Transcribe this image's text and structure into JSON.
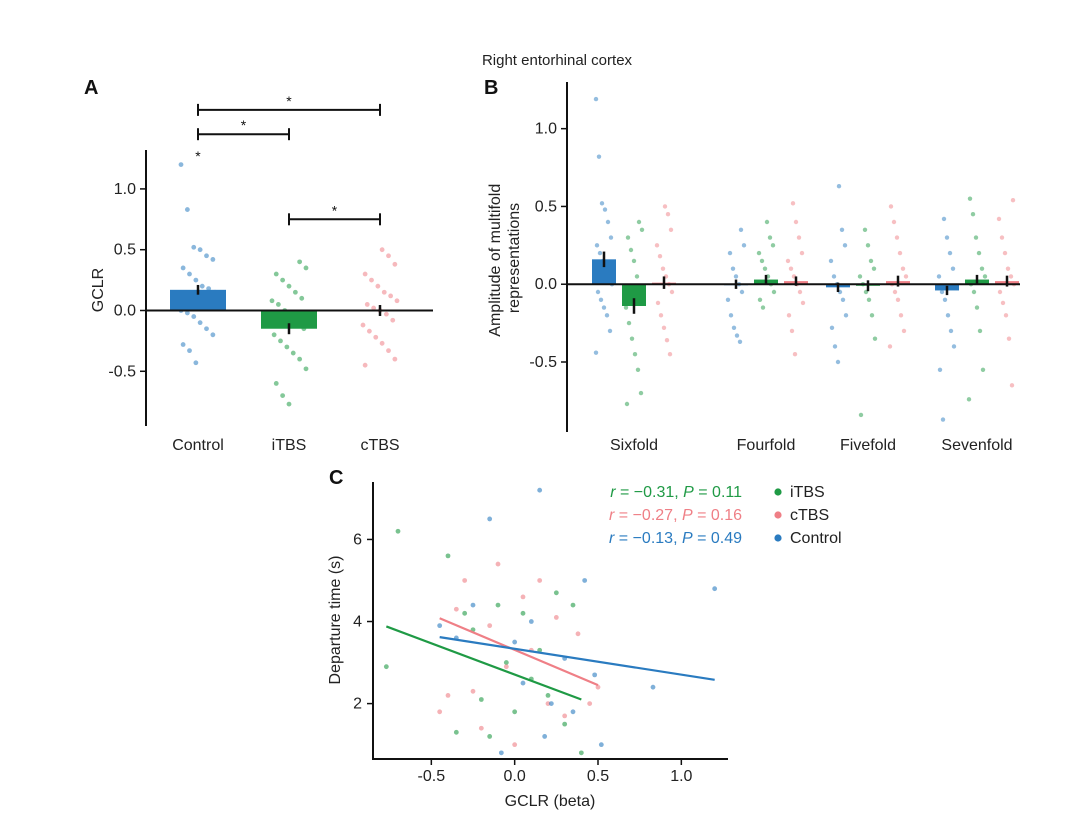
{
  "figure": {
    "title": "Right entorhinal cortex"
  },
  "colors": {
    "Control": "#2a7bc0",
    "iTBS": "#1f9a45",
    "cTBS": "#ef7f86"
  },
  "chart_data": [
    {
      "panel": "A",
      "type": "bar",
      "ylabel": "GCLR",
      "xlabel": "",
      "ylim": [
        -0.95,
        1.32
      ],
      "yticks": [
        -0.5,
        0.0,
        0.5,
        1.0
      ],
      "ytick_labels": [
        "-0.5",
        "0.0",
        "0.5",
        "1.0"
      ],
      "categories": [
        "Control",
        "iTBS",
        "cTBS"
      ],
      "values": [
        0.17,
        -0.15,
        0.0
      ],
      "errors": [
        0.04,
        0.045,
        0.045
      ],
      "points": {
        "Control": [
          1.2,
          0.83,
          0.52,
          0.5,
          0.45,
          0.42,
          0.35,
          0.3,
          0.25,
          0.2,
          0.18,
          0.15,
          0.12,
          0.1,
          0.08,
          0.05,
          0.03,
          0.0,
          -0.02,
          -0.05,
          -0.1,
          -0.15,
          -0.2,
          -0.28,
          -0.33,
          -0.43
        ],
        "iTBS": [
          0.4,
          0.35,
          0.3,
          0.25,
          0.2,
          0.15,
          0.1,
          0.08,
          0.05,
          0.0,
          -0.05,
          -0.1,
          -0.15,
          -0.2,
          -0.25,
          -0.3,
          -0.35,
          -0.4,
          -0.48,
          -0.6,
          -0.7,
          -0.77
        ],
        "cTBS": [
          0.5,
          0.45,
          0.38,
          0.3,
          0.25,
          0.2,
          0.15,
          0.12,
          0.08,
          0.05,
          0.02,
          0.0,
          -0.03,
          -0.08,
          -0.12,
          -0.17,
          -0.22,
          -0.27,
          -0.33,
          -0.4,
          -0.45
        ]
      },
      "point_labels": [
        {
          "category": "Control",
          "value": 1.27,
          "text": "*"
        }
      ],
      "significance_brackets": [
        {
          "from": "Control",
          "to": "cTBS",
          "value": 1.65,
          "label": "*"
        },
        {
          "from": "Control",
          "to": "iTBS",
          "value": 1.45,
          "label": "*"
        },
        {
          "from": "iTBS",
          "to": "cTBS",
          "value": 0.75,
          "label": "*"
        }
      ]
    },
    {
      "panel": "B",
      "type": "bar",
      "ylabel": "Amplitude of multifold representations",
      "ylabel_lines": [
        "Amplitude of multifold",
        "representations"
      ],
      "xlabel": "",
      "ylim": [
        -0.95,
        1.3
      ],
      "yticks": [
        -0.5,
        0.0,
        0.5,
        1.0
      ],
      "ytick_labels": [
        "-0.5",
        "0.0",
        "0.5",
        "1.0"
      ],
      "categories": [
        "Sixfold",
        "Fourfold",
        "Fivefold",
        "Sevenfold"
      ],
      "series": [
        {
          "name": "Control",
          "values": [
            0.16,
            0.0,
            -0.02,
            -0.04
          ],
          "errors": [
            0.05,
            0.03,
            0.03,
            0.03
          ]
        },
        {
          "name": "iTBS",
          "values": [
            -0.14,
            0.03,
            -0.01,
            0.03
          ],
          "errors": [
            0.05,
            0.03,
            0.035,
            0.03
          ]
        },
        {
          "name": "cTBS",
          "values": [
            0.01,
            0.02,
            0.02,
            0.02
          ],
          "errors": [
            0.04,
            0.03,
            0.035,
            0.035
          ]
        }
      ],
      "points": {
        "Sixfold": {
          "Control": [
            1.19,
            0.82,
            0.52,
            0.48,
            0.4,
            0.3,
            0.25,
            0.2,
            0.15,
            0.1,
            0.05,
            0.0,
            -0.05,
            -0.1,
            -0.15,
            -0.2,
            -0.3,
            -0.44
          ],
          "iTBS": [
            0.4,
            0.35,
            0.3,
            0.22,
            0.15,
            0.05,
            -0.05,
            -0.15,
            -0.25,
            -0.35,
            -0.45,
            -0.55,
            -0.7,
            -0.77
          ],
          "cTBS": [
            0.5,
            0.45,
            0.35,
            0.25,
            0.18,
            0.1,
            0.05,
            0.0,
            -0.05,
            -0.12,
            -0.2,
            -0.28,
            -0.36,
            -0.45
          ]
        },
        "Fourfold": {
          "Control": [
            0.35,
            0.25,
            0.2,
            0.1,
            0.05,
            0.0,
            -0.05,
            -0.1,
            -0.2,
            -0.28,
            -0.33,
            -0.37
          ],
          "iTBS": [
            0.4,
            0.3,
            0.25,
            0.2,
            0.15,
            0.1,
            0.05,
            0.0,
            -0.05,
            -0.1,
            -0.15
          ],
          "cTBS": [
            0.52,
            0.4,
            0.3,
            0.2,
            0.15,
            0.1,
            0.05,
            0.0,
            -0.05,
            -0.12,
            -0.2,
            -0.3,
            -0.45
          ]
        },
        "Fivefold": {
          "Control": [
            0.63,
            0.35,
            0.25,
            0.15,
            0.05,
            0.0,
            -0.05,
            -0.1,
            -0.2,
            -0.28,
            -0.4,
            -0.5
          ],
          "iTBS": [
            0.35,
            0.25,
            0.15,
            0.1,
            0.05,
            0.0,
            -0.05,
            -0.1,
            -0.2,
            -0.35,
            -0.84
          ],
          "cTBS": [
            0.5,
            0.4,
            0.3,
            0.2,
            0.1,
            0.05,
            0.0,
            -0.05,
            -0.1,
            -0.2,
            -0.3,
            -0.4
          ]
        },
        "Sevenfold": {
          "Control": [
            0.42,
            0.3,
            0.2,
            0.1,
            0.05,
            -0.05,
            -0.1,
            -0.2,
            -0.3,
            -0.4,
            -0.55,
            -0.87
          ],
          "iTBS": [
            0.55,
            0.45,
            0.3,
            0.2,
            0.1,
            0.05,
            0.0,
            -0.05,
            -0.15,
            -0.3,
            -0.55,
            -0.74
          ],
          "cTBS": [
            0.54,
            0.42,
            0.3,
            0.2,
            0.1,
            0.05,
            0.0,
            -0.05,
            -0.12,
            -0.2,
            -0.35,
            -0.65
          ]
        }
      }
    },
    {
      "panel": "C",
      "type": "scatter",
      "xlabel": "GCLR (beta)",
      "ylabel": "Departure time (s)",
      "xlim": [
        -0.85,
        1.28
      ],
      "ylim": [
        0.65,
        7.4
      ],
      "xticks": [
        -0.5,
        0.0,
        0.5,
        1.0
      ],
      "xtick_labels": [
        "-0.5",
        "0.0",
        "0.5",
        "1.0"
      ],
      "yticks": [
        2,
        4,
        6
      ],
      "ytick_labels": [
        "2",
        "4",
        "6"
      ],
      "series": [
        {
          "name": "iTBS",
          "stat_r": "−0.31",
          "stat_p": "0.11",
          "fit": {
            "x": [
              -0.77,
              0.4
            ],
            "y": [
              3.88,
              2.1
            ]
          },
          "x": [
            -0.77,
            -0.7,
            -0.4,
            -0.35,
            -0.3,
            -0.25,
            -0.2,
            -0.15,
            -0.1,
            -0.05,
            0.0,
            0.05,
            0.1,
            0.15,
            0.2,
            0.25,
            0.3,
            0.35,
            0.4
          ],
          "y": [
            2.9,
            6.2,
            5.6,
            1.3,
            4.2,
            3.8,
            2.1,
            1.2,
            4.4,
            3.0,
            1.8,
            4.2,
            2.6,
            3.3,
            2.2,
            4.7,
            1.5,
            4.4,
            0.8
          ]
        },
        {
          "name": "cTBS",
          "stat_r": "−0.27",
          "stat_p": "0.16",
          "fit": {
            "x": [
              -0.45,
              0.5
            ],
            "y": [
              4.08,
              2.45
            ]
          },
          "x": [
            -0.45,
            -0.4,
            -0.35,
            -0.3,
            -0.25,
            -0.2,
            -0.15,
            -0.1,
            -0.05,
            0.0,
            0.05,
            0.1,
            0.15,
            0.2,
            0.25,
            0.3,
            0.38,
            0.45,
            0.5
          ],
          "y": [
            1.8,
            2.2,
            4.3,
            5.0,
            2.3,
            1.4,
            3.9,
            5.4,
            2.9,
            1.0,
            4.6,
            3.3,
            5.0,
            2.0,
            4.1,
            1.7,
            3.7,
            2.0,
            2.4
          ]
        },
        {
          "name": "Control",
          "stat_r": "−0.13",
          "stat_p": "0.49",
          "fit": {
            "x": [
              -0.45,
              1.2
            ],
            "y": [
              3.62,
              2.58
            ]
          },
          "x": [
            -0.45,
            -0.35,
            -0.25,
            -0.15,
            -0.08,
            0.0,
            0.05,
            0.1,
            0.15,
            0.18,
            0.22,
            0.3,
            0.35,
            0.42,
            0.48,
            0.52,
            0.83,
            1.2
          ],
          "y": [
            3.9,
            3.6,
            4.4,
            6.5,
            0.8,
            3.5,
            2.5,
            4.0,
            7.2,
            1.2,
            2.0,
            3.1,
            1.8,
            5.0,
            2.7,
            1.0,
            2.4,
            4.8
          ]
        }
      ]
    }
  ]
}
